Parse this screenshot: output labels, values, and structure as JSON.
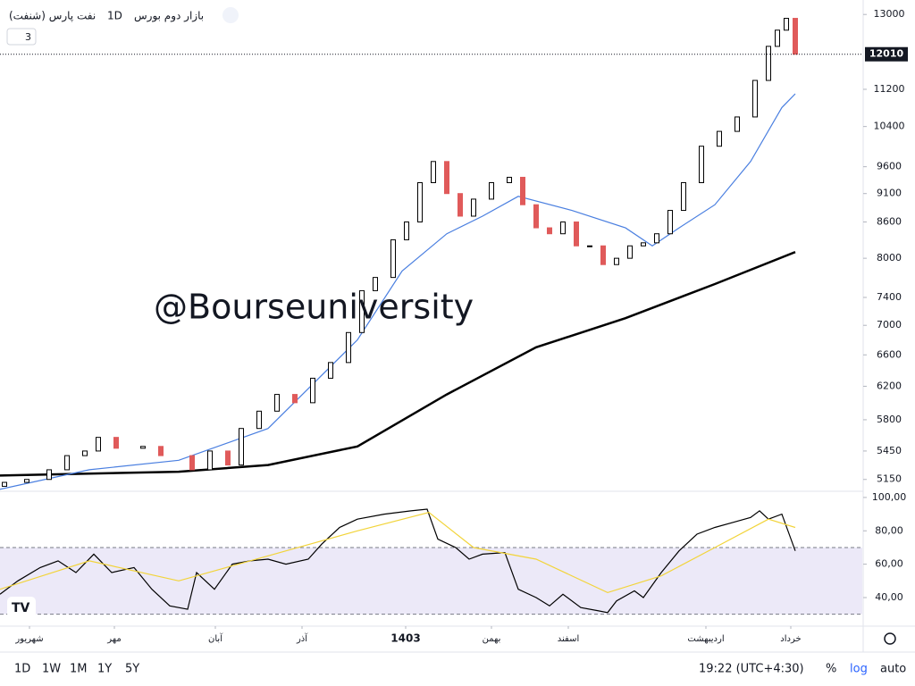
{
  "header": {
    "title": "نفت پارس (شنفت)",
    "interval": "1D",
    "exchange": "بازار دوم بورس",
    "indicator_count": "3",
    "watermark": "@Bourseuniversity"
  },
  "toolbar": {
    "ranges": [
      "1D",
      "1W",
      "1M",
      "1Y",
      "5Y"
    ],
    "time": "19:22 (UTC+4:30)",
    "percent": "%",
    "log": "log",
    "auto": "auto"
  },
  "chart_data": [
    {
      "type": "candlestick",
      "log_scale": true,
      "xlim": [
        0,
        193
      ],
      "ylim": [
        5030,
        13380
      ],
      "yticks": [
        5150,
        5450,
        5800,
        6200,
        6600,
        7000,
        7400,
        8000,
        8600,
        9100,
        9600,
        10400,
        11200,
        13000
      ],
      "last_price": 12010,
      "xticks": [
        {
          "value": 6.6,
          "label": "شهریور"
        },
        {
          "value": 25.6,
          "label": "مهر"
        },
        {
          "value": 48.2,
          "label": "آبان"
        },
        {
          "value": 67.6,
          "label": "آذر"
        },
        {
          "value": 90.8,
          "label": "1403",
          "bold": true
        },
        {
          "value": 110,
          "label": "بهمن"
        },
        {
          "value": 127.2,
          "label": "اسفند"
        },
        {
          "value": 158,
          "label": "اردیبهشت"
        },
        {
          "value": 177,
          "label": "خرداد"
        }
      ],
      "up_color": "#ffffff",
      "down_color": "#e05a5a",
      "x": [
        1,
        6,
        11,
        15,
        19,
        22,
        26,
        32,
        36,
        43,
        47,
        51,
        54,
        58,
        62,
        66,
        70,
        74,
        78,
        81,
        84,
        88,
        91,
        94,
        97,
        100,
        103,
        106,
        110,
        114,
        117,
        120,
        123,
        126,
        129,
        132,
        135,
        138,
        141,
        144,
        147,
        150,
        153,
        157,
        161,
        165,
        169,
        172,
        174,
        176,
        178
      ],
      "open": [
        5080,
        5120,
        5150,
        5250,
        5400,
        5450,
        5600,
        5480,
        5500,
        5400,
        5250,
        5450,
        5300,
        5700,
        5900,
        6100,
        6000,
        6300,
        6500,
        6900,
        7500,
        7700,
        8300,
        8600,
        9300,
        9700,
        9100,
        8700,
        9000,
        9300,
        9400,
        8900,
        8500,
        8400,
        8600,
        8200,
        8200,
        7900,
        8000,
        8200,
        8250,
        8400,
        8800,
        9300,
        10000,
        10300,
        10600,
        11400,
        12200,
        12600,
        12900
      ],
      "close": [
        5120,
        5150,
        5250,
        5400,
        5450,
        5600,
        5480,
        5500,
        5400,
        5250,
        5450,
        5300,
        5700,
        5900,
        6100,
        6000,
        6300,
        6500,
        6900,
        7500,
        7700,
        8300,
        8600,
        9300,
        9700,
        9100,
        8700,
        9000,
        9300,
        9400,
        8900,
        8500,
        8400,
        8600,
        8200,
        8200,
        7900,
        8000,
        8200,
        8250,
        8400,
        8800,
        9300,
        10000,
        10300,
        10600,
        11400,
        12200,
        12600,
        12900,
        12010
      ],
      "overlays": [
        {
          "color": "#000000",
          "width": 2.5,
          "x": [
            0,
            40,
            60,
            80,
            100,
            120,
            140,
            160,
            178
          ],
          "values": [
            5190,
            5230,
            5300,
            5500,
            6100,
            6700,
            7100,
            7600,
            8100
          ]
        },
        {
          "color": "#4a7fe0",
          "width": 1.2,
          "x": [
            0,
            20,
            40,
            60,
            80,
            90,
            100,
            108,
            116,
            128,
            140,
            146,
            152,
            160,
            168,
            175,
            178
          ],
          "values": [
            5050,
            5250,
            5350,
            5700,
            6800,
            7800,
            8400,
            8700,
            9050,
            8800,
            8500,
            8200,
            8500,
            8900,
            9700,
            10800,
            11100
          ]
        }
      ]
    },
    {
      "type": "line",
      "xlim": [
        0,
        193
      ],
      "ylim": [
        23.4,
        103.7
      ],
      "band": [
        30,
        70
      ],
      "band_color": "#ece9f8",
      "yticks": [
        {
          "value": 40,
          "label": "40,00"
        },
        {
          "value": 60,
          "label": "60,00"
        },
        {
          "value": 80,
          "label": "80,00"
        },
        {
          "value": 100,
          "label": "100,00"
        }
      ],
      "series": [
        {
          "color": "#000000",
          "x": [
            0,
            4,
            9,
            13,
            17,
            21,
            25,
            30,
            34,
            38,
            42,
            44,
            48,
            52,
            56,
            60,
            64,
            69,
            72,
            76,
            80,
            86,
            92,
            95.6,
            98,
            102,
            105,
            108,
            113,
            116,
            120,
            123,
            126,
            130,
            134,
            136,
            138,
            142,
            144,
            148,
            152,
            156,
            160,
            164,
            168,
            170,
            172,
            175,
            178
          ],
          "values": [
            42,
            50,
            58,
            62,
            55,
            66,
            55,
            58,
            45,
            35,
            33,
            55,
            45,
            60,
            62,
            63,
            60,
            63,
            72,
            82,
            87,
            90,
            92,
            93,
            75,
            70,
            63,
            66,
            67,
            45,
            40,
            35,
            42,
            34,
            32,
            31,
            38,
            44,
            40,
            55,
            68,
            78,
            82,
            85,
            88,
            92,
            87,
            90,
            68
          ]
        },
        {
          "color": "#f2d43a",
          "x": [
            0,
            20,
            40,
            60,
            80,
            96,
            106,
            120,
            136,
            148,
            160,
            172,
            178
          ],
          "values": [
            45,
            62,
            50,
            65,
            80,
            91,
            70,
            63,
            43,
            53,
            70,
            87,
            82
          ]
        }
      ]
    }
  ]
}
